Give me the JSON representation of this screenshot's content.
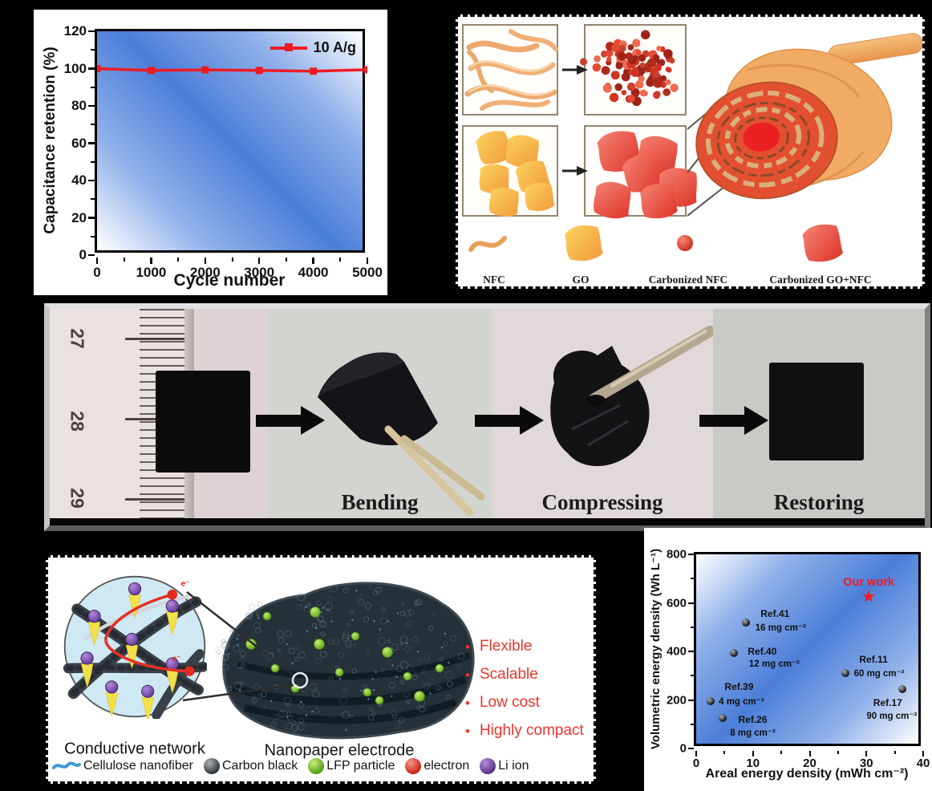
{
  "figure": {
    "background": "#000000"
  },
  "chart_data": [
    {
      "id": "cycling-stability",
      "type": "line",
      "xlabel": "Cycle number",
      "ylabel": "Capacitance retention (%)",
      "xlim": [
        0,
        5000
      ],
      "ylim": [
        0,
        120
      ],
      "xticks": [
        0,
        1000,
        2000,
        3000,
        4000,
        5000
      ],
      "yticks": [
        0,
        20,
        40,
        60,
        80,
        100,
        120
      ],
      "grid": false,
      "legend_position": "top-right",
      "plot_background": "diagonal blue-white gradient",
      "series": [
        {
          "name": "10 A/g",
          "color": "#ed1c24",
          "marker": "square",
          "x": [
            0,
            1000,
            2000,
            3000,
            4000,
            5000
          ],
          "y": [
            100,
            99,
            99.3,
            99,
            98.6,
            99.4
          ]
        }
      ]
    },
    {
      "id": "energy-density-comparison",
      "type": "scatter",
      "xlabel": "Areal energy density (mWh cm⁻²)",
      "ylabel": "Volumetric energy density (Wh L⁻¹)",
      "xlim": [
        0,
        40
      ],
      "ylim": [
        0,
        800
      ],
      "xticks": [
        0,
        10,
        20,
        30,
        40
      ],
      "yticks": [
        0,
        200,
        400,
        600,
        800
      ],
      "grid": false,
      "plot_background": "diagonal blue-white gradient",
      "points": [
        {
          "ref": "Ref.41",
          "loading": "16 mg cm⁻²",
          "x": 8.8,
          "y": 520
        },
        {
          "ref": "Ref.40",
          "loading": "12 mg cm⁻²",
          "x": 6.7,
          "y": 395
        },
        {
          "ref": "Ref.39",
          "loading": "4 mg cm⁻²",
          "x": 2.6,
          "y": 195
        },
        {
          "ref": "Ref.26",
          "loading": "8 mg cm⁻²",
          "x": 4.6,
          "y": 125
        },
        {
          "ref": "Ref.11",
          "loading": "60 mg cm⁻²",
          "x": 26.3,
          "y": 310
        },
        {
          "ref": "Ref.17",
          "loading": "90 mg cm⁻²",
          "x": 36.3,
          "y": 245
        }
      ],
      "highlight": {
        "label": "Our work",
        "x": 30.4,
        "y": 620,
        "marker": "star",
        "color": "#ed1c24"
      }
    }
  ],
  "synthesis_panel": {
    "legend": [
      {
        "name": "NFC"
      },
      {
        "name": "GO"
      },
      {
        "name": "Carbonized NFC"
      },
      {
        "name": "Carbonized GO+NFC"
      }
    ]
  },
  "photo_panel": {
    "ruler_marks": [
      "27",
      "28",
      "29"
    ],
    "labels": {
      "bending": "Bending",
      "compressing": "Compressing",
      "restoring": "Restoring"
    }
  },
  "electrode_panel": {
    "captions": {
      "network": "Conductive network",
      "electrode": "Nanopaper electrode"
    },
    "features": [
      "Flexible",
      "Scalable",
      "Low cost",
      "Highly compact"
    ],
    "feature_color": "#e8352a",
    "electron_symbol": "e⁻",
    "legend": [
      "Cellulose nanofiber",
      "Carbon black",
      "LFP particle",
      "electron",
      "Li ion"
    ]
  }
}
